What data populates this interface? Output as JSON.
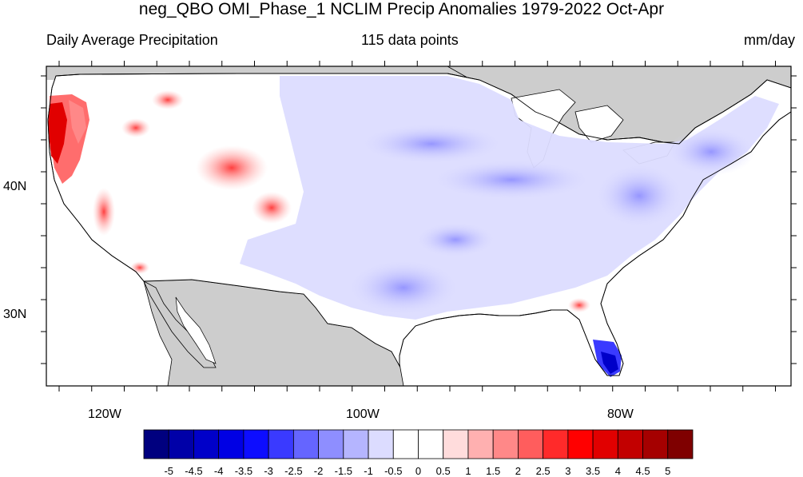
{
  "title": "neg_QBO OMI_Phase_1 NCLIM Precip Anomalies 1979-2022 Oct-Apr",
  "subtitle_left": "Daily Average Precipitation",
  "subtitle_center": "115 data points",
  "subtitle_right": "mm/day",
  "lat_labels": [
    "40N",
    "30N"
  ],
  "lon_labels": [
    "120W",
    "100W",
    "80W"
  ],
  "legend": {
    "labels": [
      "-5",
      "-4.5",
      "-4",
      "-3.5",
      "-3",
      "-2.5",
      "-2",
      "-1.5",
      "-1",
      "-0.5",
      "0",
      "0.5",
      "1",
      "1.5",
      "2",
      "2.5",
      "3",
      "3.5",
      "4",
      "4.5",
      "5"
    ],
    "colors": [
      "#00007f",
      "#0000a8",
      "#0000c9",
      "#0000e4",
      "#0d0dff",
      "#3a3aff",
      "#6565ff",
      "#8e8eff",
      "#b5b5ff",
      "#dcdcff",
      "#ffffff",
      "#ffffff",
      "#ffdcdc",
      "#ffb0b0",
      "#ff8888",
      "#ff5d5d",
      "#ff2a2a",
      "#ff0000",
      "#e10000",
      "#c20000",
      "#a50000",
      "#7f0000"
    ]
  },
  "colors": {
    "land_outside": "#cdcdcd",
    "ocean": "#ffffff"
  }
}
